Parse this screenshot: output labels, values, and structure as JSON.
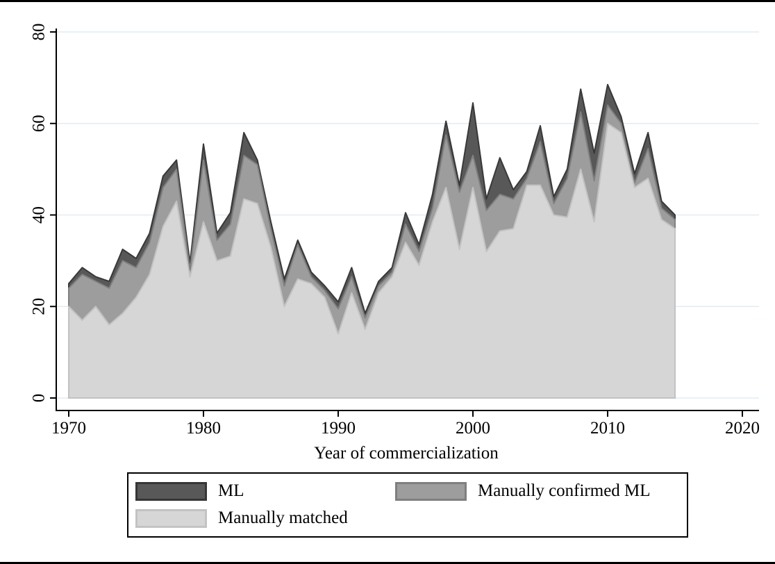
{
  "figure": {
    "background": "#ffffff",
    "border_color": "#000000",
    "text_color": "#000000"
  },
  "chart_data": {
    "type": "area",
    "stacked": true,
    "title": "",
    "xlabel": "Year of commercialization",
    "ylabel": "",
    "xlim": [
      1969,
      2021.3
    ],
    "ylim": [
      0,
      80
    ],
    "grid": true,
    "gridline_color": "#e2ebf2",
    "axis_color": "#000000",
    "legend_position": "bottom",
    "xticks": [
      "1970",
      "1980",
      "1990",
      "2000",
      "2010",
      "2020"
    ],
    "xtick_years": [
      1970,
      1980,
      1990,
      2000,
      2010,
      2020
    ],
    "yticks": [
      "0",
      "20",
      "40",
      "60",
      "80"
    ],
    "ytick_values": [
      0,
      20,
      40,
      60,
      80
    ],
    "x_start_year": 1970,
    "x_end_year": 2015,
    "x": [
      1970,
      1971,
      1972,
      1973,
      1974,
      1975,
      1976,
      1977,
      1978,
      1979,
      1980,
      1981,
      1982,
      1983,
      1984,
      1985,
      1986,
      1987,
      1988,
      1989,
      1990,
      1991,
      1992,
      1993,
      1994,
      1995,
      1996,
      1997,
      1998,
      1999,
      2000,
      2001,
      2002,
      2003,
      2004,
      2005,
      2006,
      2007,
      2008,
      2009,
      2010,
      2011,
      2012,
      2013,
      2014,
      2015
    ],
    "series": [
      {
        "name": "Manually matched",
        "color": "#d6d6d6",
        "edge_color": "#c2c2c2",
        "values": [
          20,
          17,
          20,
          16,
          18.5,
          22,
          27,
          37.5,
          43,
          26.5,
          38.5,
          30,
          31,
          43.5,
          42.5,
          33,
          20,
          26,
          25,
          22,
          14,
          23,
          15,
          23,
          26.5,
          34,
          29,
          38.5,
          46,
          32.5,
          46,
          32,
          36.5,
          37,
          46.5,
          46.5,
          40,
          39.5,
          50,
          38.5,
          60,
          58,
          46,
          48,
          39,
          37
        ]
      },
      {
        "name": "Manually confirmed ML",
        "color": "#9d9d9d",
        "edge_color": "#808080",
        "values": [
          4,
          10,
          5.5,
          8,
          11.5,
          6.5,
          7,
          8.5,
          7,
          1.5,
          13.5,
          4.5,
          7,
          9.5,
          8.5,
          4,
          4.5,
          7.5,
          1.5,
          1.5,
          5.5,
          3.5,
          2.5,
          1.5,
          1,
          4,
          3,
          3,
          11.5,
          12.5,
          7,
          9,
          8,
          6.5,
          1.5,
          9.5,
          2.5,
          8.5,
          12.5,
          9,
          4,
          2,
          1,
          6.5,
          2.5,
          2
        ]
      },
      {
        "name": "ML",
        "color": "#585858",
        "edge_color": "#383838",
        "values": [
          1,
          1.5,
          1,
          1.5,
          2.5,
          2,
          2,
          2.5,
          2,
          1.5,
          3.5,
          1.5,
          2.5,
          5,
          1,
          1.5,
          1.5,
          1,
          1,
          1,
          1.5,
          2,
          1,
          1,
          1,
          2.5,
          1.5,
          3,
          3,
          1.5,
          11.5,
          2.5,
          8,
          2,
          1.5,
          3.5,
          1.5,
          2,
          5,
          6,
          4.5,
          1.5,
          2,
          3.5,
          1.5,
          1
        ]
      }
    ]
  },
  "legend": {
    "items": [
      {
        "label": "ML",
        "color": "#585858",
        "border": "#363636"
      },
      {
        "label": "Manually confirmed ML",
        "color": "#9d9d9d",
        "border": "#7f7f7f"
      },
      {
        "label": "Manually matched",
        "color": "#d6d6d6",
        "border": "#c3c3c3"
      }
    ]
  }
}
